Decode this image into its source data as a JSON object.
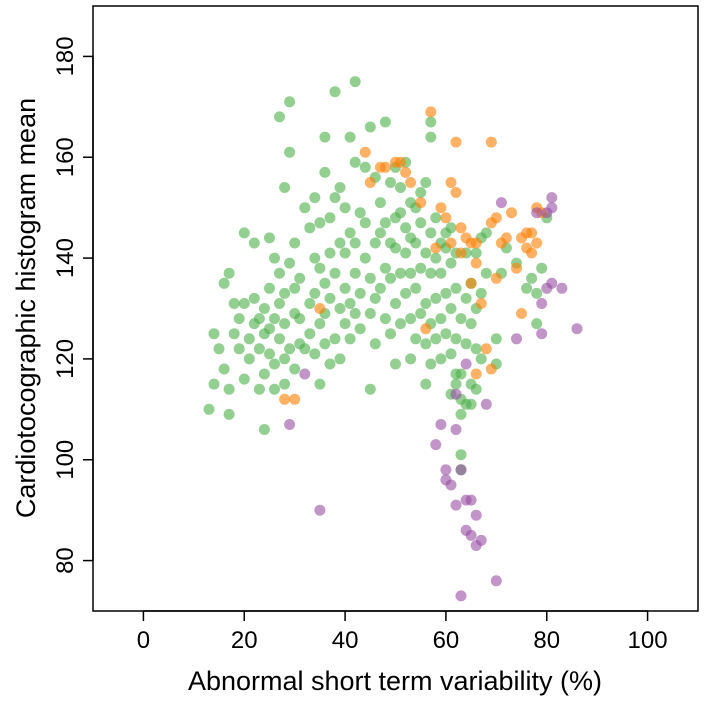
{
  "chart_data": {
    "type": "scatter",
    "xlabel": "Abnormal short term variability (%)",
    "ylabel": "Cardiotocographic histogram mean",
    "xlim": [
      -10,
      110
    ],
    "ylim": [
      70,
      190
    ],
    "x_ticks": [
      0,
      20,
      40,
      60,
      80,
      100
    ],
    "y_ticks": [
      80,
      100,
      120,
      140,
      160,
      180
    ],
    "grid": false,
    "legend": "none",
    "series": [
      {
        "color": "#4daf4a",
        "points": [
          [
            13,
            110
          ],
          [
            14,
            115
          ],
          [
            14,
            125
          ],
          [
            15,
            122
          ],
          [
            16,
            118
          ],
          [
            16,
            135
          ],
          [
            17,
            137
          ],
          [
            17,
            114
          ],
          [
            17,
            109
          ],
          [
            18,
            125
          ],
          [
            18,
            131
          ],
          [
            19,
            122
          ],
          [
            19,
            128
          ],
          [
            20,
            116
          ],
          [
            20,
            131
          ],
          [
            20,
            145
          ],
          [
            21,
            120
          ],
          [
            21,
            124
          ],
          [
            22,
            127
          ],
          [
            22,
            132
          ],
          [
            22,
            143
          ],
          [
            23,
            114
          ],
          [
            23,
            122
          ],
          [
            23,
            128
          ],
          [
            24,
            106
          ],
          [
            24,
            117
          ],
          [
            24,
            125
          ],
          [
            24,
            130
          ],
          [
            25,
            121
          ],
          [
            25,
            126
          ],
          [
            25,
            134
          ],
          [
            25,
            144
          ],
          [
            26,
            114
          ],
          [
            26,
            119
          ],
          [
            26,
            128
          ],
          [
            26,
            140
          ],
          [
            27,
            124
          ],
          [
            27,
            131
          ],
          [
            27,
            137
          ],
          [
            27,
            168
          ],
          [
            28,
            115
          ],
          [
            28,
            120
          ],
          [
            28,
            127
          ],
          [
            28,
            133
          ],
          [
            28,
            154
          ],
          [
            29,
            122
          ],
          [
            29,
            139
          ],
          [
            29,
            161
          ],
          [
            29,
            171
          ],
          [
            30,
            118
          ],
          [
            30,
            129
          ],
          [
            30,
            134
          ],
          [
            30,
            143
          ],
          [
            31,
            123
          ],
          [
            31,
            128
          ],
          [
            31,
            136
          ],
          [
            32,
            150
          ],
          [
            32,
            122
          ],
          [
            33,
            125
          ],
          [
            33,
            131
          ],
          [
            33,
            146
          ],
          [
            34,
            121
          ],
          [
            34,
            133
          ],
          [
            34,
            140
          ],
          [
            34,
            152
          ],
          [
            35,
            115
          ],
          [
            35,
            127
          ],
          [
            35,
            138
          ],
          [
            35,
            147
          ],
          [
            36,
            123
          ],
          [
            36,
            129
          ],
          [
            36,
            135
          ],
          [
            36,
            157
          ],
          [
            36,
            164
          ],
          [
            37,
            119
          ],
          [
            37,
            132
          ],
          [
            37,
            141
          ],
          [
            37,
            148
          ],
          [
            38,
            124
          ],
          [
            38,
            137
          ],
          [
            38,
            152
          ],
          [
            38,
            173
          ],
          [
            39,
            120
          ],
          [
            39,
            130
          ],
          [
            39,
            143
          ],
          [
            39,
            154
          ],
          [
            40,
            127
          ],
          [
            40,
            134
          ],
          [
            40,
            141
          ],
          [
            40,
            150
          ],
          [
            41,
            124
          ],
          [
            41,
            131
          ],
          [
            41,
            145
          ],
          [
            41,
            164
          ],
          [
            42,
            129
          ],
          [
            42,
            137
          ],
          [
            42,
            143
          ],
          [
            42,
            159
          ],
          [
            42,
            175
          ],
          [
            43,
            126
          ],
          [
            43,
            133
          ],
          [
            43,
            149
          ],
          [
            44,
            140
          ],
          [
            44,
            147
          ],
          [
            44,
            158
          ],
          [
            45,
            114
          ],
          [
            45,
            129
          ],
          [
            45,
            136
          ],
          [
            45,
            166
          ],
          [
            46,
            123
          ],
          [
            46,
            132
          ],
          [
            46,
            143
          ],
          [
            46,
            156
          ],
          [
            47,
            134
          ],
          [
            47,
            145
          ],
          [
            47,
            151
          ],
          [
            48,
            128
          ],
          [
            48,
            138
          ],
          [
            48,
            147
          ],
          [
            48,
            167
          ],
          [
            49,
            125
          ],
          [
            49,
            136
          ],
          [
            49,
            143
          ],
          [
            49,
            155
          ],
          [
            50,
            119
          ],
          [
            50,
            131
          ],
          [
            50,
            142
          ],
          [
            50,
            148
          ],
          [
            50,
            158
          ],
          [
            51,
            127
          ],
          [
            51,
            137
          ],
          [
            51,
            149
          ],
          [
            51,
            154
          ],
          [
            52,
            133
          ],
          [
            52,
            141
          ],
          [
            52,
            146
          ],
          [
            52,
            159
          ],
          [
            53,
            120
          ],
          [
            53,
            128
          ],
          [
            53,
            137
          ],
          [
            53,
            144
          ],
          [
            53,
            151
          ],
          [
            54,
            124
          ],
          [
            54,
            134
          ],
          [
            54,
            143
          ],
          [
            54,
            150
          ],
          [
            55,
            129
          ],
          [
            55,
            138
          ],
          [
            55,
            147
          ],
          [
            55,
            153
          ],
          [
            56,
            115
          ],
          [
            56,
            123
          ],
          [
            56,
            131
          ],
          [
            56,
            141
          ],
          [
            56,
            155
          ],
          [
            57,
            119
          ],
          [
            57,
            127
          ],
          [
            57,
            137
          ],
          [
            57,
            145
          ],
          [
            57,
            164
          ],
          [
            57,
            167
          ],
          [
            58,
            124
          ],
          [
            58,
            132
          ],
          [
            58,
            140
          ],
          [
            58,
            148
          ],
          [
            59,
            120
          ],
          [
            59,
            128
          ],
          [
            59,
            137
          ],
          [
            59,
            143
          ],
          [
            60,
            125
          ],
          [
            60,
            133
          ],
          [
            60,
            142
          ],
          [
            60,
            145
          ],
          [
            61,
            113
          ],
          [
            61,
            121
          ],
          [
            61,
            130
          ],
          [
            61,
            139
          ],
          [
            61,
            146
          ],
          [
            62,
            115
          ],
          [
            62,
            117
          ],
          [
            62,
            124
          ],
          [
            62,
            134
          ],
          [
            62,
            141
          ],
          [
            63,
            98
          ],
          [
            63,
            101
          ],
          [
            63,
            109
          ],
          [
            63,
            112
          ],
          [
            63,
            117
          ],
          [
            63,
            128
          ],
          [
            64,
            111
          ],
          [
            64,
            123
          ],
          [
            64,
            132
          ],
          [
            64,
            141
          ],
          [
            65,
            111
          ],
          [
            65,
            115
          ],
          [
            65,
            127
          ],
          [
            65,
            135
          ],
          [
            66,
            114
          ],
          [
            66,
            122
          ],
          [
            66,
            130
          ],
          [
            66,
            141
          ],
          [
            67,
            120
          ],
          [
            67,
            133
          ],
          [
            67,
            144
          ],
          [
            68,
            145
          ],
          [
            68,
            137
          ],
          [
            70,
            119
          ],
          [
            70,
            124
          ],
          [
            71,
            137
          ],
          [
            72,
            142
          ],
          [
            74,
            139
          ],
          [
            76,
            134
          ],
          [
            77,
            136
          ],
          [
            78,
            127
          ],
          [
            78,
            133
          ],
          [
            79,
            138
          ],
          [
            80,
            148
          ]
        ]
      },
      {
        "color": "#ff7f00",
        "points": [
          [
            28,
            112
          ],
          [
            30,
            112
          ],
          [
            35,
            130
          ],
          [
            44,
            161
          ],
          [
            45,
            155
          ],
          [
            47,
            158
          ],
          [
            48,
            158
          ],
          [
            50,
            159
          ],
          [
            51,
            159
          ],
          [
            52,
            157
          ],
          [
            53,
            155
          ],
          [
            55,
            151
          ],
          [
            56,
            126
          ],
          [
            57,
            169
          ],
          [
            58,
            142
          ],
          [
            59,
            150
          ],
          [
            60,
            148
          ],
          [
            61,
            155
          ],
          [
            61,
            143
          ],
          [
            62,
            153
          ],
          [
            62,
            163
          ],
          [
            63,
            141
          ],
          [
            63,
            146
          ],
          [
            64,
            144
          ],
          [
            65,
            143
          ],
          [
            65,
            135
          ],
          [
            66,
            143
          ],
          [
            66,
            139
          ],
          [
            67,
            131
          ],
          [
            68,
            122
          ],
          [
            69,
            147
          ],
          [
            69,
            163
          ],
          [
            70,
            148
          ],
          [
            70,
            136
          ],
          [
            71,
            143
          ],
          [
            72,
            144
          ],
          [
            73,
            149
          ],
          [
            74,
            138
          ],
          [
            75,
            129
          ],
          [
            75,
            144
          ],
          [
            76,
            145
          ],
          [
            76,
            142
          ],
          [
            77,
            145
          ],
          [
            77,
            141
          ],
          [
            78,
            150
          ],
          [
            78,
            143
          ],
          [
            79,
            149
          ],
          [
            66,
            117
          ],
          [
            69,
            118
          ]
        ]
      },
      {
        "color": "#984ea3",
        "points": [
          [
            29,
            107
          ],
          [
            32,
            117
          ],
          [
            35,
            90
          ],
          [
            58,
            103
          ],
          [
            59,
            107
          ],
          [
            60,
            98
          ],
          [
            60,
            96
          ],
          [
            61,
            95
          ],
          [
            62,
            106
          ],
          [
            62,
            91
          ],
          [
            63,
            98
          ],
          [
            64,
            92
          ],
          [
            64,
            86
          ],
          [
            65,
            92
          ],
          [
            65,
            85
          ],
          [
            66,
            89
          ],
          [
            66,
            83
          ],
          [
            67,
            84
          ],
          [
            68,
            111
          ],
          [
            70,
            76
          ],
          [
            71,
            151
          ],
          [
            74,
            124
          ],
          [
            78,
            149
          ],
          [
            79,
            131
          ],
          [
            79,
            125
          ],
          [
            80,
            134
          ],
          [
            80,
            149
          ],
          [
            81,
            152
          ],
          [
            81,
            150
          ],
          [
            81,
            135
          ],
          [
            83,
            134
          ],
          [
            86,
            126
          ],
          [
            63,
            73
          ],
          [
            64,
            119
          ],
          [
            62,
            113
          ]
        ]
      }
    ]
  }
}
